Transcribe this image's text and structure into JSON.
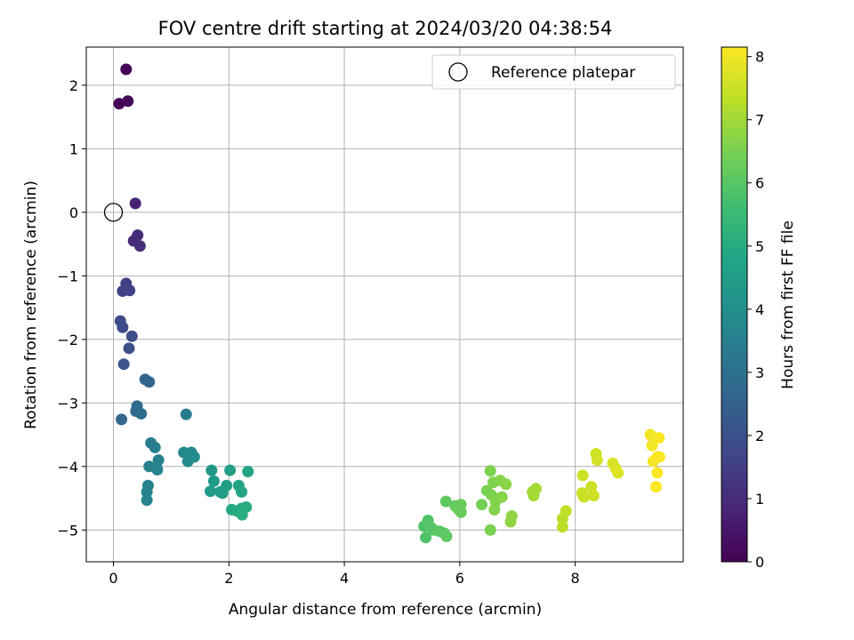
{
  "chart_data": {
    "type": "scatter",
    "title": "FOV centre drift starting at 2024/03/20 04:38:54",
    "xlabel": "Angular distance from reference (arcmin)",
    "ylabel": "Rotation from reference (arcmin)",
    "xlim": [
      -0.47,
      9.87
    ],
    "ylim": [
      -5.5,
      2.6
    ],
    "x_ticks": [
      0,
      2,
      4,
      6,
      8
    ],
    "y_ticks": [
      2,
      1,
      0,
      -1,
      -2,
      -3,
      -4,
      -5
    ],
    "x_tick_labels": [
      "0",
      "2",
      "4",
      "6",
      "8"
    ],
    "y_tick_labels": [
      "2",
      "1",
      "0",
      "−1",
      "−2",
      "−3",
      "−4",
      "−5"
    ],
    "grid": true,
    "colormap": "viridis",
    "colorbar": {
      "label": "Hours from first FF file",
      "min": 0,
      "max": 8.15,
      "ticks": [
        0,
        1,
        2,
        3,
        4,
        5,
        6,
        7,
        8
      ],
      "tick_labels": [
        "0",
        "1",
        "2",
        "3",
        "4",
        "5",
        "6",
        "7",
        "8"
      ]
    },
    "legend": {
      "position": "upper right",
      "entries": [
        "Reference platepar"
      ]
    },
    "reference_point": {
      "x": 0,
      "y": 0
    },
    "points": [
      {
        "x": 0.22,
        "y": 2.25,
        "t": 0.05
      },
      {
        "x": 0.1,
        "y": 1.71,
        "t": 0.1
      },
      {
        "x": 0.25,
        "y": 1.75,
        "t": 0.15
      },
      {
        "x": 0.38,
        "y": 0.14,
        "t": 0.8
      },
      {
        "x": 0.35,
        "y": -0.45,
        "t": 1.0
      },
      {
        "x": 0.42,
        "y": -0.36,
        "t": 1.05
      },
      {
        "x": 0.46,
        "y": -0.53,
        "t": 1.1
      },
      {
        "x": 0.22,
        "y": -1.12,
        "t": 1.5
      },
      {
        "x": 0.16,
        "y": -1.24,
        "t": 1.55
      },
      {
        "x": 0.28,
        "y": -1.23,
        "t": 1.6
      },
      {
        "x": 0.12,
        "y": -1.71,
        "t": 1.8
      },
      {
        "x": 0.16,
        "y": -1.81,
        "t": 1.85
      },
      {
        "x": 0.32,
        "y": -1.95,
        "t": 1.9
      },
      {
        "x": 0.27,
        "y": -2.14,
        "t": 2.0
      },
      {
        "x": 0.18,
        "y": -2.39,
        "t": 2.1
      },
      {
        "x": 0.55,
        "y": -2.63,
        "t": 2.6
      },
      {
        "x": 0.62,
        "y": -2.67,
        "t": 2.65
      },
      {
        "x": 0.41,
        "y": -3.05,
        "t": 2.8
      },
      {
        "x": 0.39,
        "y": -3.13,
        "t": 2.85
      },
      {
        "x": 0.48,
        "y": -3.17,
        "t": 2.9
      },
      {
        "x": 0.14,
        "y": -3.26,
        "t": 2.7
      },
      {
        "x": 0.65,
        "y": -3.63,
        "t": 3.4
      },
      {
        "x": 0.72,
        "y": -3.7,
        "t": 3.45
      },
      {
        "x": 0.78,
        "y": -3.9,
        "t": 3.5
      },
      {
        "x": 0.62,
        "y": -4.0,
        "t": 3.55
      },
      {
        "x": 0.74,
        "y": -4.0,
        "t": 3.6
      },
      {
        "x": 0.76,
        "y": -4.05,
        "t": 3.65
      },
      {
        "x": 0.6,
        "y": -4.3,
        "t": 3.6
      },
      {
        "x": 0.58,
        "y": -4.4,
        "t": 3.62
      },
      {
        "x": 0.58,
        "y": -4.53,
        "t": 3.65
      },
      {
        "x": 1.26,
        "y": -3.18,
        "t": 3.4
      },
      {
        "x": 1.22,
        "y": -3.78,
        "t": 3.8
      },
      {
        "x": 1.35,
        "y": -3.78,
        "t": 3.85
      },
      {
        "x": 1.4,
        "y": -3.85,
        "t": 3.9
      },
      {
        "x": 1.29,
        "y": -3.92,
        "t": 3.95
      },
      {
        "x": 1.7,
        "y": -4.06,
        "t": 4.3
      },
      {
        "x": 1.74,
        "y": -4.23,
        "t": 4.35
      },
      {
        "x": 1.68,
        "y": -4.39,
        "t": 4.4
      },
      {
        "x": 1.85,
        "y": -4.4,
        "t": 4.45
      },
      {
        "x": 1.89,
        "y": -4.42,
        "t": 4.5
      },
      {
        "x": 1.96,
        "y": -4.3,
        "t": 4.55
      },
      {
        "x": 2.02,
        "y": -4.06,
        "t": 4.6
      },
      {
        "x": 2.33,
        "y": -4.08,
        "t": 4.75
      },
      {
        "x": 2.17,
        "y": -4.3,
        "t": 4.7
      },
      {
        "x": 2.22,
        "y": -4.4,
        "t": 4.75
      },
      {
        "x": 2.05,
        "y": -4.68,
        "t": 4.9
      },
      {
        "x": 2.14,
        "y": -4.7,
        "t": 4.95
      },
      {
        "x": 2.22,
        "y": -4.66,
        "t": 5.0
      },
      {
        "x": 2.3,
        "y": -4.64,
        "t": 5.05
      },
      {
        "x": 2.23,
        "y": -4.76,
        "t": 5.1
      },
      {
        "x": 5.38,
        "y": -4.94,
        "t": 5.85
      },
      {
        "x": 5.45,
        "y": -4.85,
        "t": 5.9
      },
      {
        "x": 5.5,
        "y": -4.96,
        "t": 5.95
      },
      {
        "x": 5.41,
        "y": -5.12,
        "t": 5.88
      },
      {
        "x": 5.55,
        "y": -5.0,
        "t": 6.0
      },
      {
        "x": 5.65,
        "y": -5.02,
        "t": 6.05
      },
      {
        "x": 5.73,
        "y": -5.05,
        "t": 6.08
      },
      {
        "x": 5.77,
        "y": -5.1,
        "t": 6.1
      },
      {
        "x": 5.76,
        "y": -4.55,
        "t": 6.1
      },
      {
        "x": 5.92,
        "y": -4.62,
        "t": 6.2
      },
      {
        "x": 6.02,
        "y": -4.6,
        "t": 6.25
      },
      {
        "x": 5.97,
        "y": -4.67,
        "t": 6.22
      },
      {
        "x": 6.02,
        "y": -4.72,
        "t": 6.27
      },
      {
        "x": 6.38,
        "y": -4.6,
        "t": 6.45
      },
      {
        "x": 6.47,
        "y": -4.38,
        "t": 6.5
      },
      {
        "x": 6.53,
        "y": -4.07,
        "t": 6.55
      },
      {
        "x": 6.55,
        "y": -4.45,
        "t": 6.55
      },
      {
        "x": 6.58,
        "y": -4.25,
        "t": 6.58
      },
      {
        "x": 6.62,
        "y": -4.55,
        "t": 6.6
      },
      {
        "x": 6.6,
        "y": -4.68,
        "t": 6.6
      },
      {
        "x": 6.7,
        "y": -4.22,
        "t": 6.65
      },
      {
        "x": 6.73,
        "y": -4.48,
        "t": 6.68
      },
      {
        "x": 6.8,
        "y": -4.28,
        "t": 6.7
      },
      {
        "x": 6.53,
        "y": -5.0,
        "t": 6.52
      },
      {
        "x": 6.9,
        "y": -4.78,
        "t": 6.8
      },
      {
        "x": 6.88,
        "y": -4.87,
        "t": 6.78
      },
      {
        "x": 7.26,
        "y": -4.4,
        "t": 7.0
      },
      {
        "x": 7.28,
        "y": -4.46,
        "t": 7.02
      },
      {
        "x": 7.32,
        "y": -4.35,
        "t": 7.05
      },
      {
        "x": 7.78,
        "y": -4.82,
        "t": 7.3
      },
      {
        "x": 7.84,
        "y": -4.7,
        "t": 7.35
      },
      {
        "x": 7.78,
        "y": -4.95,
        "t": 7.32
      },
      {
        "x": 8.13,
        "y": -4.14,
        "t": 7.5
      },
      {
        "x": 8.12,
        "y": -4.42,
        "t": 7.5
      },
      {
        "x": 8.15,
        "y": -4.48,
        "t": 7.52
      },
      {
        "x": 8.28,
        "y": -4.32,
        "t": 7.55
      },
      {
        "x": 8.32,
        "y": -4.46,
        "t": 7.57
      },
      {
        "x": 8.36,
        "y": -3.8,
        "t": 7.6
      },
      {
        "x": 8.38,
        "y": -3.9,
        "t": 7.62
      },
      {
        "x": 8.65,
        "y": -3.95,
        "t": 7.7
      },
      {
        "x": 8.7,
        "y": -4.03,
        "t": 7.72
      },
      {
        "x": 8.74,
        "y": -4.1,
        "t": 7.75
      },
      {
        "x": 9.3,
        "y": -3.5,
        "t": 8.0
      },
      {
        "x": 9.33,
        "y": -3.67,
        "t": 8.02
      },
      {
        "x": 9.35,
        "y": -3.92,
        "t": 8.05
      },
      {
        "x": 9.42,
        "y": -3.85,
        "t": 8.07
      },
      {
        "x": 9.45,
        "y": -3.55,
        "t": 8.1
      },
      {
        "x": 9.46,
        "y": -3.85,
        "t": 8.1
      },
      {
        "x": 9.42,
        "y": -4.1,
        "t": 8.12
      },
      {
        "x": 9.4,
        "y": -4.32,
        "t": 8.13
      }
    ]
  }
}
